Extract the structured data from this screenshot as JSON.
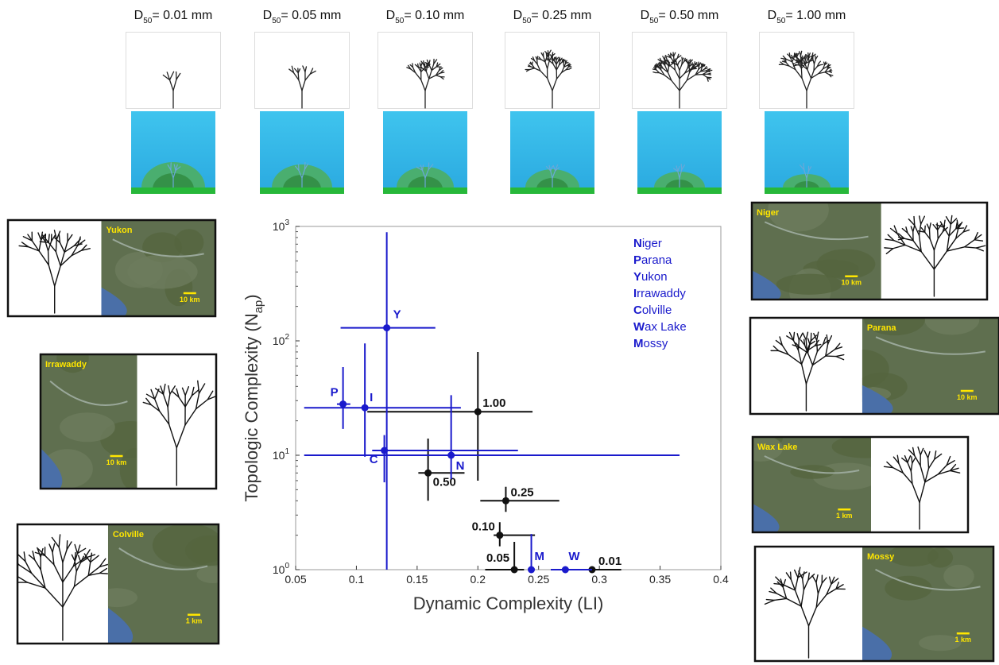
{
  "sim_panels": [
    {
      "symbol": "D",
      "sub": "50",
      "label": "= 0.01 mm"
    },
    {
      "symbol": "D",
      "sub": "50",
      "label": "= 0.05 mm"
    },
    {
      "symbol": "D",
      "sub": "50",
      "label": "= 0.10 mm"
    },
    {
      "symbol": "D",
      "sub": "50",
      "label": "= 0.25 mm"
    },
    {
      "symbol": "D",
      "sub": "50",
      "label": "= 0.50 mm"
    },
    {
      "symbol": "D",
      "sub": "50",
      "label": "= 1.00 mm"
    }
  ],
  "delta_panels": [
    {
      "name": "Yukon",
      "scale": "10 km"
    },
    {
      "name": "Irrawaddy",
      "scale": "10 km"
    },
    {
      "name": "Colville",
      "scale": "1 km"
    },
    {
      "name": "Niger",
      "scale": "10 km"
    },
    {
      "name": "Parana",
      "scale": "10 km"
    },
    {
      "name": "Wax Lake",
      "scale": "1 km"
    },
    {
      "name": "Mossy",
      "scale": "1 km"
    }
  ],
  "chart_data": {
    "type": "scatter",
    "y_scale": "log",
    "x_label": "Dynamic Complexity (LI)",
    "y_label": {
      "text": "Topologic Complexity (N",
      "sub": "ap",
      "end": ")"
    },
    "xlim": [
      0.05,
      0.4
    ],
    "xticks": [
      0.05,
      0.1,
      0.15,
      0.2,
      0.25,
      0.3,
      0.35,
      0.4
    ],
    "ylim": [
      1,
      1000
    ],
    "yticks": [
      {
        "value": 1,
        "label": "10",
        "exponent": "0"
      },
      {
        "value": 10,
        "label": "10",
        "exponent": "1"
      },
      {
        "value": 100,
        "label": "10",
        "exponent": "2"
      },
      {
        "value": 1000,
        "label": "10",
        "exponent": "3"
      }
    ],
    "legend": {
      "position": "upper right",
      "color": "#1a1acc",
      "entries": [
        "Niger",
        "Parana",
        "Yukon",
        "Irrawaddy",
        "Colville",
        "Wax Lake",
        "Mossy"
      ]
    },
    "series": [
      {
        "color": "#111111",
        "labels": [
          "1.00",
          "0.50",
          "0.25",
          "0.10",
          "0.05",
          "0.01"
        ],
        "x": [
          0.2,
          0.159,
          0.223,
          0.218,
          0.23,
          0.294
        ],
        "y": [
          24,
          7,
          4,
          2,
          1,
          1
        ],
        "x_low": [
          0.109,
          0.151,
          0.202,
          0.213,
          0.206,
          0.263
        ],
        "x_high": [
          0.245,
          0.189,
          0.267,
          0.247,
          0.238,
          0.318
        ],
        "y_low": [
          6,
          4,
          3.2,
          1.6,
          1,
          null
        ],
        "y_high": [
          80,
          14,
          5.3,
          2.6,
          1.75,
          null
        ]
      },
      {
        "color": "#1a1acc",
        "labels": [
          "Y",
          "P",
          "I",
          "C",
          "N",
          "M",
          "W"
        ],
        "x": [
          0.125,
          0.089,
          0.107,
          0.123,
          0.178,
          0.244,
          0.272
        ],
        "y": [
          130,
          28,
          26,
          11,
          10,
          1,
          1
        ],
        "x_low": [
          0.087,
          0.084,
          0.057,
          0.113,
          0.057,
          null,
          0.26
        ],
        "x_high": [
          0.165,
          0.095,
          0.186,
          0.233,
          0.366,
          null,
          0.294
        ],
        "y_low": [
          1,
          17,
          9.7,
          5.8,
          6.2,
          1,
          null
        ],
        "y_high": [
          890,
          59,
          95,
          15,
          33.5,
          2.05,
          null
        ]
      }
    ]
  }
}
